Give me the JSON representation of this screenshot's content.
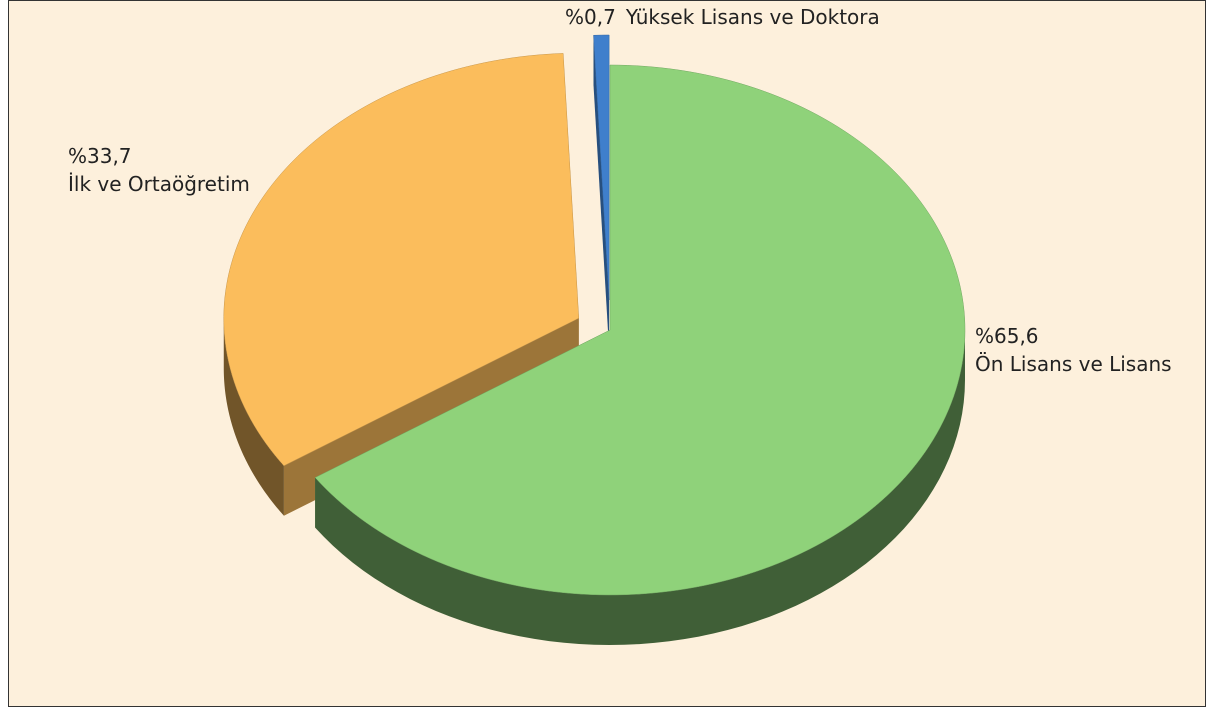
{
  "chart_data": {
    "type": "pie",
    "categories": [
      "Ön Lisans ve Lisans",
      "İlk ve Ortaöğretim",
      "Yüksek Lisans ve Doktora"
    ],
    "values": [
      65.6,
      33.7,
      0.7
    ],
    "value_labels": [
      "%65,6",
      "%33,7",
      "%0,7"
    ],
    "colors": [
      "#8fd27a",
      "#fbbd5c",
      "#3f7fcc"
    ]
  }
}
